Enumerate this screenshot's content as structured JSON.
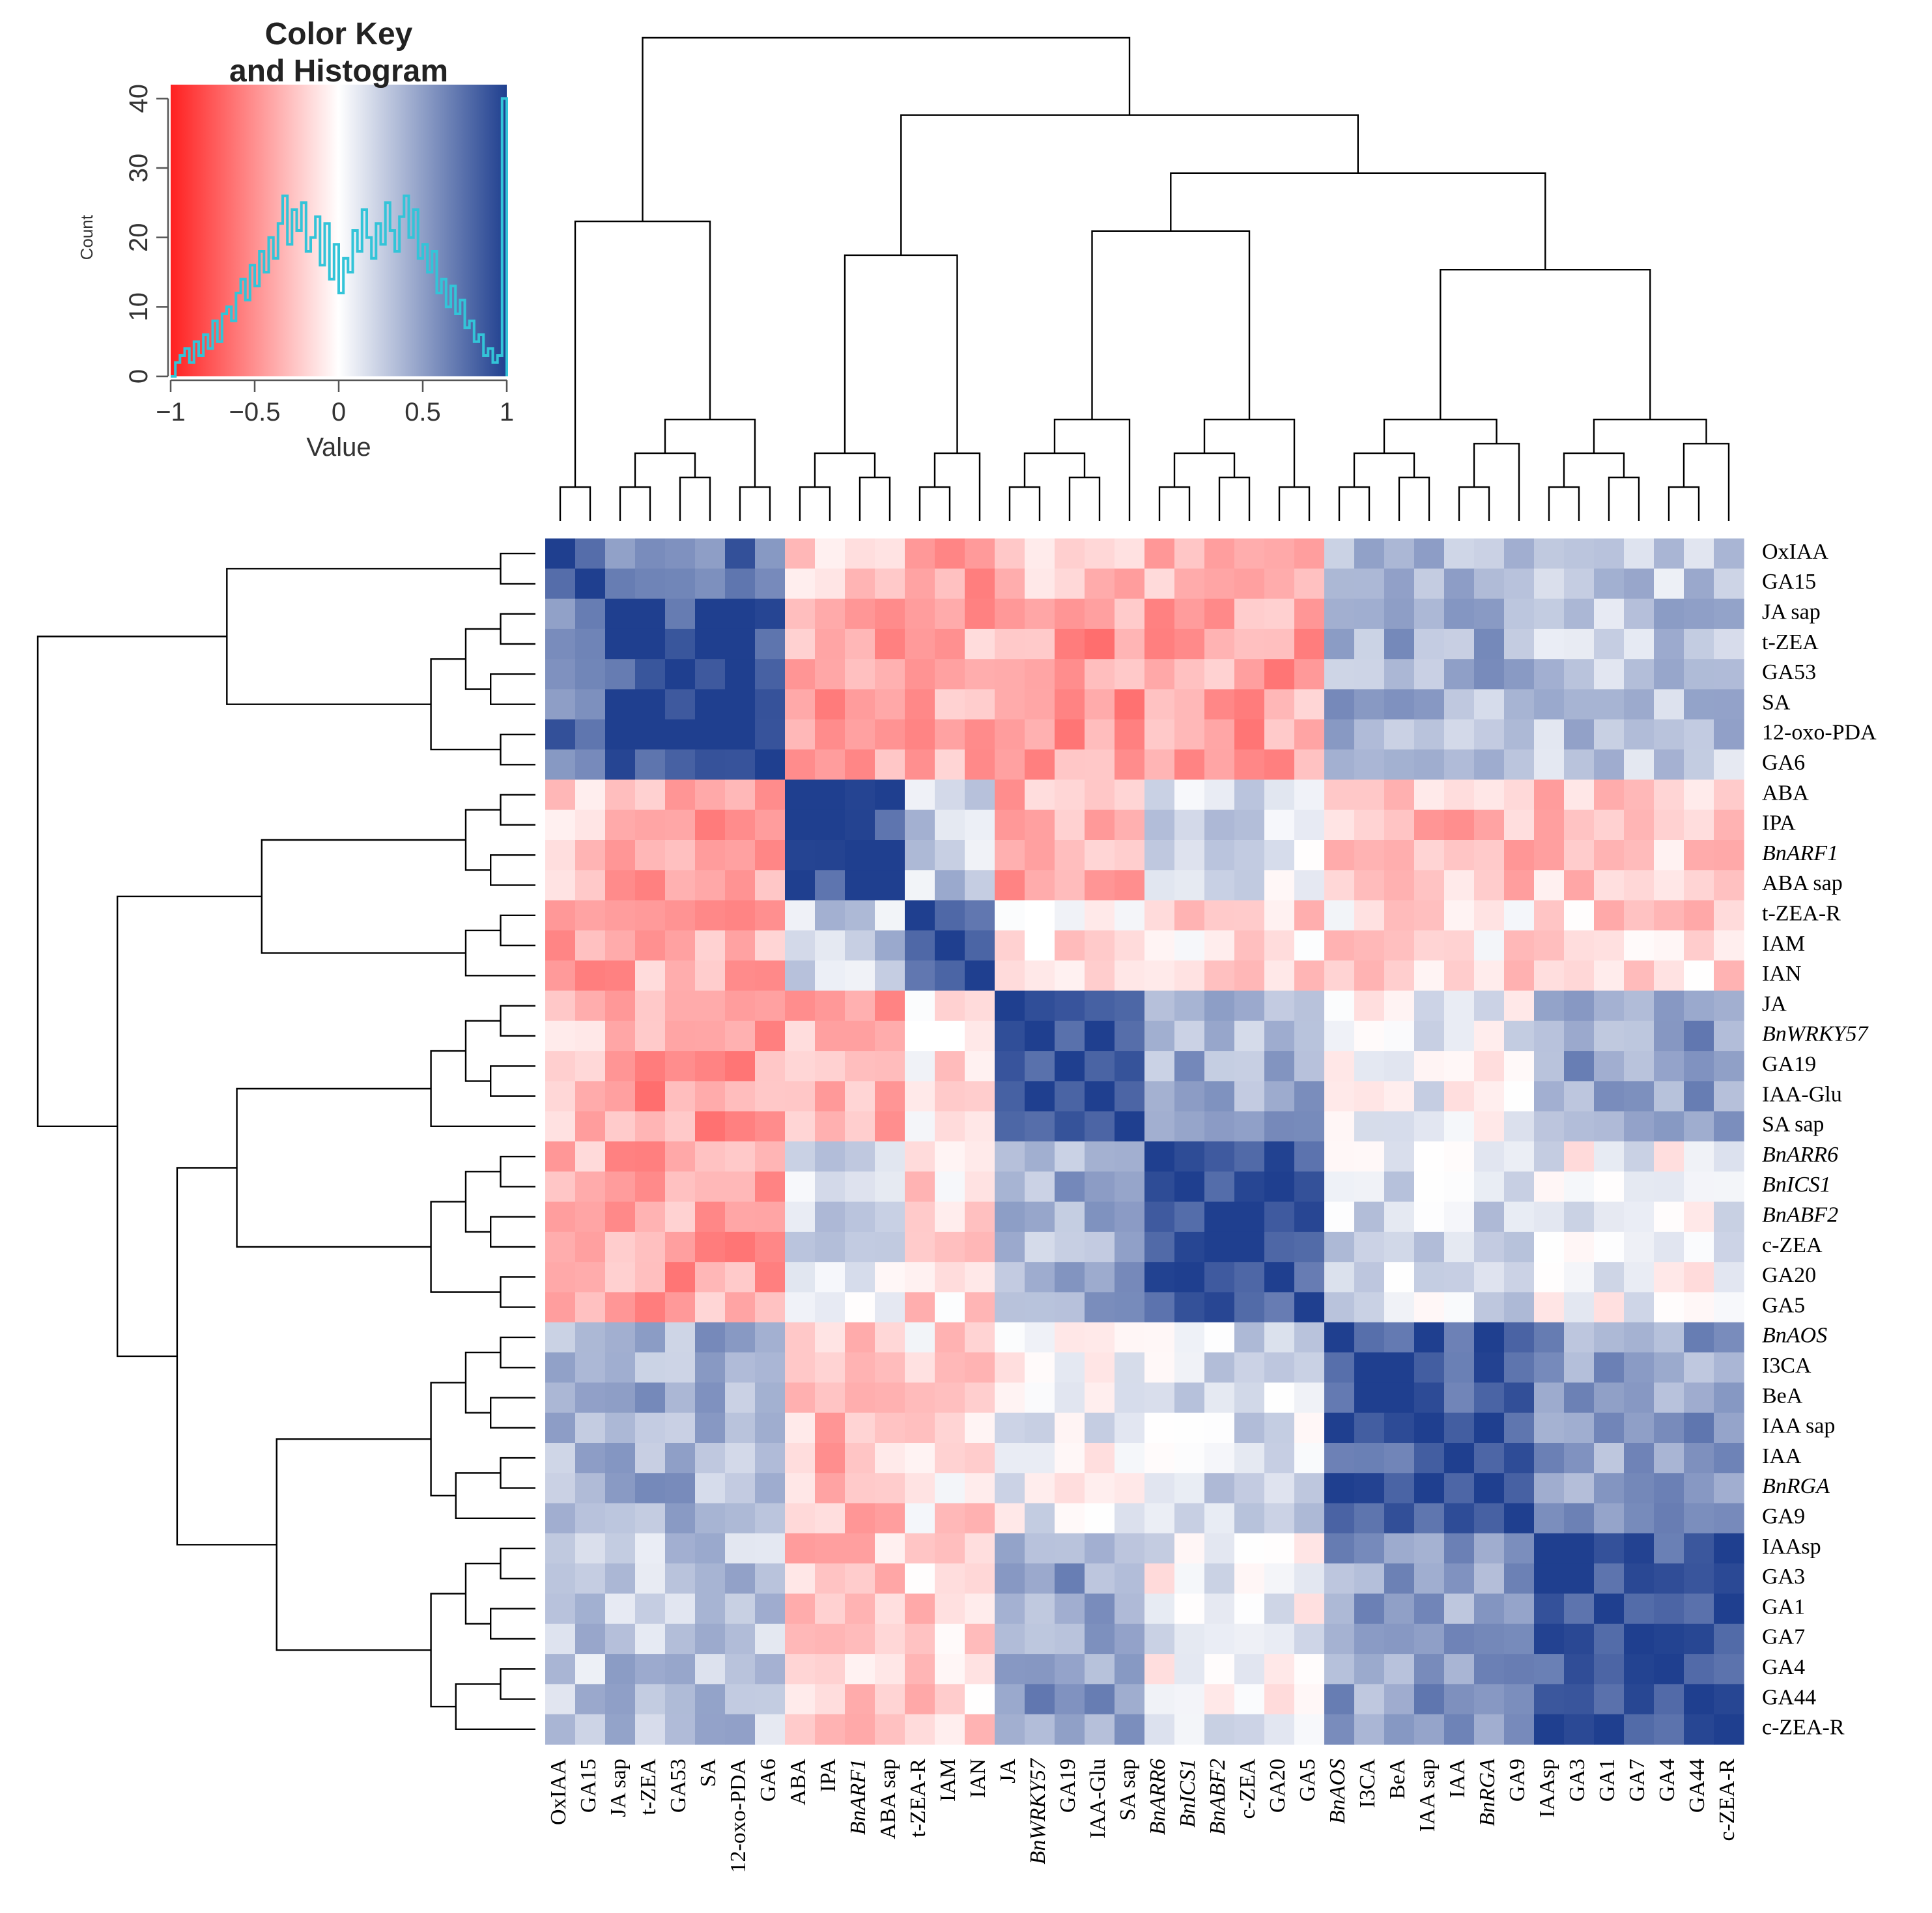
{
  "chart_data": {
    "type": "heatmap",
    "title": "",
    "labels": [
      "OxIAA",
      "GA15",
      "JA sap",
      "t-ZEA",
      "GA53",
      "SA",
      "12-oxo-PDA",
      "GA6",
      "ABA",
      "IPA",
      "BnARF1",
      "ABA sap",
      "t-ZEA-R",
      "IAM",
      "IAN",
      "JA",
      "BnWRKY57",
      "GA19",
      "IAA-Glu",
      "SA sap",
      "BnARR6",
      "BnICS1",
      "BnABF2",
      "c-ZEA",
      "GA20",
      "GA5",
      "BnAOS",
      "I3CA",
      "BeA",
      "IAA sap",
      "IAA",
      "BnRGA",
      "GA9",
      "IAAsp",
      "GA3",
      "GA1",
      "GA7",
      "GA4",
      "GA44",
      "c-ZEA-R"
    ],
    "italic_labels": [
      "BnARF1",
      "BnWRKY57",
      "BnARR6",
      "BnICS1",
      "BnABF2",
      "BnAOS",
      "BnRGA"
    ],
    "clusters": [
      [
        0,
        1
      ],
      [
        2,
        3,
        4,
        5,
        6,
        7
      ],
      [
        8,
        9,
        10,
        11
      ],
      [
        12,
        13,
        14
      ],
      [
        15,
        16,
        17,
        18,
        19
      ],
      [
        20,
        21,
        22,
        23,
        24,
        25
      ],
      [
        26,
        27,
        28,
        29,
        30,
        31,
        32
      ],
      [
        33,
        34,
        35,
        36,
        37,
        38,
        39
      ]
    ],
    "value_range": [
      -1,
      1
    ],
    "colors": {
      "low": "#ff2020",
      "mid": "#ffffff",
      "high": "#1f3f8f",
      "histogram": "#33c4d8",
      "line": "#000000"
    },
    "color_key": {
      "title_line1": "Color Key",
      "title_line2": "and Histogram",
      "xlabel": "Value",
      "ylabel": "Count",
      "x_ticks": [
        "−1",
        "−0.5",
        "0",
        "0.5",
        "1"
      ],
      "x_tick_values": [
        -1,
        -0.5,
        0,
        0.5,
        1
      ],
      "y_ticks": [
        "0",
        "10",
        "20",
        "30",
        "40"
      ],
      "y_tick_values": [
        0,
        10,
        20,
        30,
        40
      ],
      "ylim": [
        0,
        42
      ],
      "histogram_values": [
        0,
        2,
        3,
        4,
        2,
        5,
        3,
        6,
        4,
        8,
        5,
        9,
        10,
        8,
        12,
        14,
        11,
        16,
        13,
        18,
        15,
        20,
        17,
        22,
        26,
        19,
        24,
        21,
        25,
        18,
        20,
        23,
        16,
        22,
        14,
        19,
        12,
        17,
        15,
        21,
        18,
        24,
        20,
        17,
        22,
        19,
        25,
        21,
        18,
        23,
        26,
        20,
        24,
        17,
        19,
        15,
        18,
        12,
        14,
        10,
        13,
        9,
        11,
        7,
        8,
        5,
        6,
        3,
        4,
        2,
        3,
        40
      ]
    }
  }
}
